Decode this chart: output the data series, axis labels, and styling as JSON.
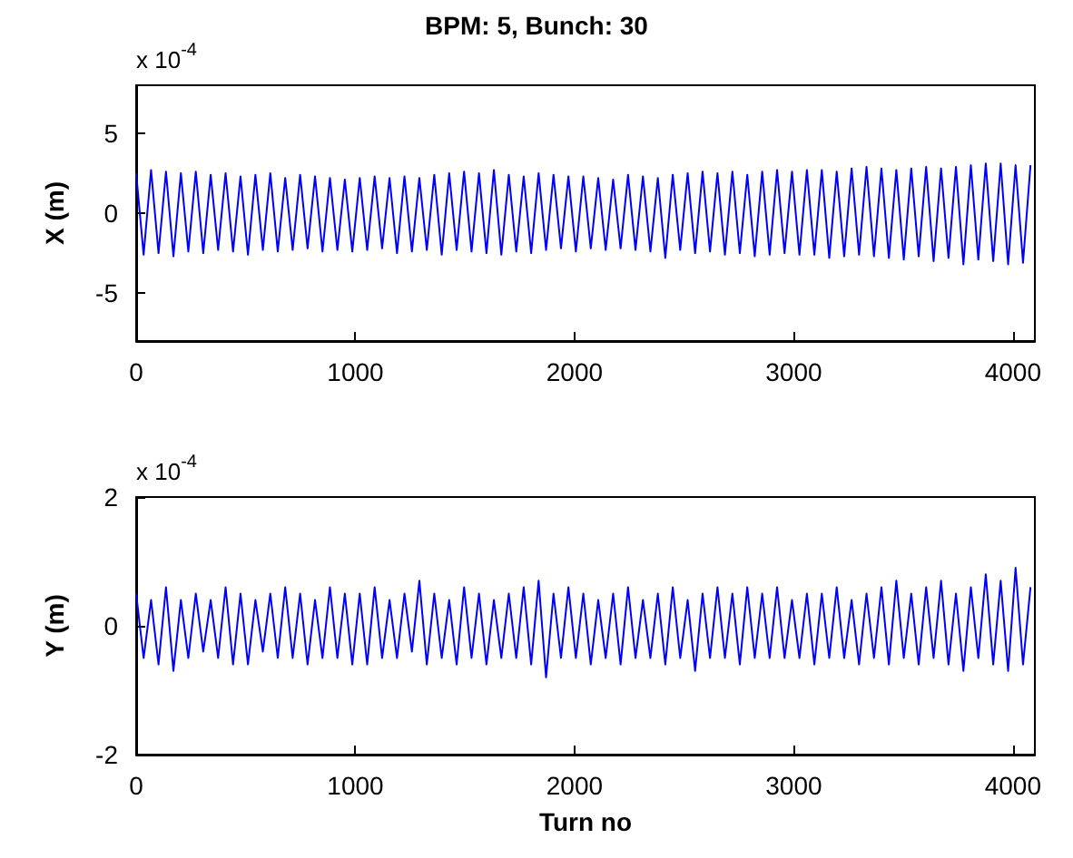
{
  "chart_data": [
    {
      "type": "line",
      "title": "BPM: 5, Bunch: 30",
      "ylabel": "X (m)",
      "annotations": [
        "x 10$^{-4}$"
      ],
      "xlim": [
        0,
        4100
      ],
      "xticks": [
        0,
        1000,
        2000,
        3000,
        4000
      ],
      "ylim": [
        -8,
        8
      ],
      "yticks": [
        -5,
        0,
        5
      ],
      "series": [
        {
          "color": "#0000ff",
          "x": [
            0,
            34,
            68,
            102,
            136,
            170,
            204,
            238,
            272,
            306,
            340,
            374,
            408,
            442,
            476,
            510,
            544,
            578,
            612,
            646,
            680,
            714,
            748,
            782,
            816,
            850,
            884,
            918,
            952,
            986,
            1020,
            1054,
            1088,
            1122,
            1156,
            1190,
            1224,
            1258,
            1292,
            1326,
            1360,
            1394,
            1428,
            1462,
            1496,
            1530,
            1564,
            1598,
            1632,
            1666,
            1700,
            1734,
            1768,
            1802,
            1836,
            1870,
            1904,
            1938,
            1972,
            2006,
            2040,
            2074,
            2108,
            2142,
            2176,
            2210,
            2244,
            2278,
            2312,
            2346,
            2380,
            2414,
            2448,
            2482,
            2516,
            2550,
            2584,
            2618,
            2652,
            2686,
            2720,
            2754,
            2788,
            2822,
            2856,
            2890,
            2924,
            2958,
            2992,
            3026,
            3060,
            3094,
            3128,
            3162,
            3196,
            3230,
            3264,
            3298,
            3332,
            3366,
            3400,
            3434,
            3468,
            3502,
            3536,
            3570,
            3604,
            3638,
            3672,
            3706,
            3740,
            3774,
            3808,
            3842,
            3876,
            3910,
            3944,
            3978,
            4012,
            4046,
            4080
          ],
          "values": [
            2.5,
            -2.6,
            2.7,
            -2.5,
            2.6,
            -2.7,
            2.5,
            -2.4,
            2.6,
            -2.5,
            2.4,
            -2.3,
            2.5,
            -2.4,
            2.3,
            -2.6,
            2.4,
            -2.3,
            2.5,
            -2.4,
            2.2,
            -2.3,
            2.4,
            -2.2,
            2.3,
            -2.4,
            2.2,
            -2.3,
            2.1,
            -2.4,
            2.2,
            -2.3,
            2.3,
            -2.2,
            2.2,
            -2.5,
            2.3,
            -2.4,
            2.2,
            -2.3,
            2.4,
            -2.6,
            2.5,
            -2.3,
            2.6,
            -2.4,
            2.5,
            -2.5,
            2.7,
            -2.6,
            2.4,
            -2.4,
            2.3,
            -2.5,
            2.5,
            -2.3,
            2.4,
            -2.2,
            2.3,
            -2.4,
            2.3,
            -2.2,
            2.2,
            -2.3,
            2.1,
            -2.2,
            2.4,
            -2.3,
            2.3,
            -2.4,
            2.2,
            -2.8,
            2.4,
            -2.3,
            2.5,
            -2.5,
            2.6,
            -2.4,
            2.5,
            -2.6,
            2.6,
            -2.5,
            2.4,
            -2.7,
            2.6,
            -2.6,
            2.7,
            -2.5,
            2.6,
            -2.6,
            2.7,
            -2.6,
            2.7,
            -2.8,
            2.6,
            -2.7,
            2.8,
            -2.6,
            2.9,
            -2.7,
            2.8,
            -2.8,
            2.7,
            -2.9,
            2.8,
            -2.7,
            2.9,
            -3.0,
            2.8,
            -2.8,
            2.9,
            -3.2,
            3.0,
            -2.9,
            3.1,
            -3.0,
            3.1,
            -3.2,
            3.0,
            -3.1,
            3.0
          ]
        }
      ]
    },
    {
      "type": "line",
      "xlabel": "Turn no",
      "ylabel": "Y (m)",
      "annotations": [
        "x 10$^{-4}$"
      ],
      "xlim": [
        0,
        4100
      ],
      "xticks": [
        0,
        1000,
        2000,
        3000,
        4000
      ],
      "ylim": [
        -2,
        2
      ],
      "yticks": [
        -2,
        0,
        2
      ],
      "series": [
        {
          "color": "#0000ff",
          "x": [
            0,
            34,
            68,
            102,
            136,
            170,
            204,
            238,
            272,
            306,
            340,
            374,
            408,
            442,
            476,
            510,
            544,
            578,
            612,
            646,
            680,
            714,
            748,
            782,
            816,
            850,
            884,
            918,
            952,
            986,
            1020,
            1054,
            1088,
            1122,
            1156,
            1190,
            1224,
            1258,
            1292,
            1326,
            1360,
            1394,
            1428,
            1462,
            1496,
            1530,
            1564,
            1598,
            1632,
            1666,
            1700,
            1734,
            1768,
            1802,
            1836,
            1870,
            1904,
            1938,
            1972,
            2006,
            2040,
            2074,
            2108,
            2142,
            2176,
            2210,
            2244,
            2278,
            2312,
            2346,
            2380,
            2414,
            2448,
            2482,
            2516,
            2550,
            2584,
            2618,
            2652,
            2686,
            2720,
            2754,
            2788,
            2822,
            2856,
            2890,
            2924,
            2958,
            2992,
            3026,
            3060,
            3094,
            3128,
            3162,
            3196,
            3230,
            3264,
            3298,
            3332,
            3366,
            3400,
            3434,
            3468,
            3502,
            3536,
            3570,
            3604,
            3638,
            3672,
            3706,
            3740,
            3774,
            3808,
            3842,
            3876,
            3910,
            3944,
            3978,
            4012,
            4046,
            4080
          ],
          "values": [
            0.5,
            -0.5,
            0.4,
            -0.6,
            0.6,
            -0.7,
            0.4,
            -0.5,
            0.5,
            -0.4,
            0.4,
            -0.5,
            0.6,
            -0.6,
            0.5,
            -0.6,
            0.4,
            -0.4,
            0.5,
            -0.5,
            0.6,
            -0.5,
            0.5,
            -0.6,
            0.4,
            -0.5,
            0.6,
            -0.5,
            0.5,
            -0.6,
            0.5,
            -0.6,
            0.6,
            -0.5,
            0.4,
            -0.5,
            0.5,
            -0.4,
            0.7,
            -0.6,
            0.5,
            -0.5,
            0.4,
            -0.6,
            0.6,
            -0.5,
            0.5,
            -0.6,
            0.4,
            -0.5,
            0.5,
            -0.5,
            0.6,
            -0.6,
            0.7,
            -0.8,
            0.5,
            -0.5,
            0.6,
            -0.5,
            0.5,
            -0.6,
            0.4,
            -0.5,
            0.5,
            -0.6,
            0.6,
            -0.5,
            0.4,
            -0.5,
            0.5,
            -0.6,
            0.6,
            -0.5,
            0.4,
            -0.7,
            0.5,
            -0.5,
            0.6,
            -0.5,
            0.5,
            -0.6,
            0.6,
            -0.5,
            0.5,
            -0.5,
            0.6,
            -0.5,
            0.4,
            -0.5,
            0.5,
            -0.6,
            0.5,
            -0.5,
            0.6,
            -0.5,
            0.4,
            -0.6,
            0.5,
            -0.5,
            0.6,
            -0.6,
            0.7,
            -0.5,
            0.5,
            -0.6,
            0.6,
            -0.5,
            0.7,
            -0.6,
            0.5,
            -0.7,
            0.6,
            -0.5,
            0.8,
            -0.6,
            0.7,
            -0.7,
            0.9,
            -0.6,
            0.6
          ]
        }
      ]
    }
  ]
}
